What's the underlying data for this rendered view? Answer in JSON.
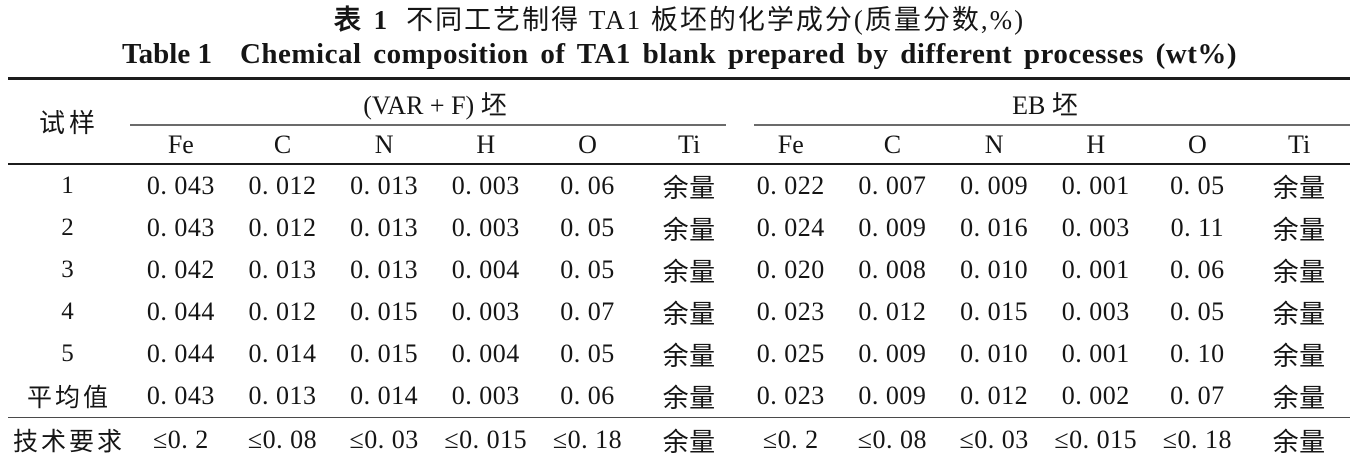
{
  "titles": {
    "cn_label": "表 1",
    "cn_text": "不同工艺制得 TA1 板坯的化学成分(质量分数,%)",
    "en_label": "Table 1",
    "en_text": "Chemical composition of TA1 blank prepared by different processes (wt%)"
  },
  "table": {
    "sample_header": "试样",
    "groups": [
      {
        "label": "(VAR + F) 坯",
        "columns": [
          "Fe",
          "C",
          "N",
          "H",
          "O",
          "Ti"
        ]
      },
      {
        "label": "EB 坯",
        "columns": [
          "Fe",
          "C",
          "N",
          "H",
          "O",
          "Ti"
        ]
      }
    ],
    "rows": [
      {
        "label": "1",
        "values": [
          "0. 043",
          "0. 012",
          "0. 013",
          "0. 003",
          "0. 06",
          "余量",
          "0. 022",
          "0. 007",
          "0. 009",
          "0. 001",
          "0. 05",
          "余量"
        ]
      },
      {
        "label": "2",
        "values": [
          "0. 043",
          "0. 012",
          "0. 013",
          "0. 003",
          "0. 05",
          "余量",
          "0. 024",
          "0. 009",
          "0. 016",
          "0. 003",
          "0. 11",
          "余量"
        ]
      },
      {
        "label": "3",
        "values": [
          "0. 042",
          "0. 013",
          "0. 013",
          "0. 004",
          "0. 05",
          "余量",
          "0. 020",
          "0. 008",
          "0. 010",
          "0. 001",
          "0. 06",
          "余量"
        ]
      },
      {
        "label": "4",
        "values": [
          "0. 044",
          "0. 012",
          "0. 015",
          "0. 003",
          "0. 07",
          "余量",
          "0. 023",
          "0. 012",
          "0. 015",
          "0. 003",
          "0. 05",
          "余量"
        ]
      },
      {
        "label": "5",
        "values": [
          "0. 044",
          "0. 014",
          "0. 015",
          "0. 004",
          "0. 05",
          "余量",
          "0. 025",
          "0. 009",
          "0. 010",
          "0. 001",
          "0. 10",
          "余量"
        ]
      },
      {
        "label": "平均值",
        "values": [
          "0. 043",
          "0. 013",
          "0. 014",
          "0. 003",
          "0. 06",
          "余量",
          "0. 023",
          "0. 009",
          "0. 012",
          "0. 002",
          "0. 07",
          "余量"
        ]
      },
      {
        "label": "技术要求",
        "values": [
          "≤0. 2",
          "≤0. 08",
          "≤0. 03",
          "≤0. 015",
          "≤0. 18",
          "余量",
          "≤0. 2",
          "≤0. 08",
          "≤0. 03",
          "≤0. 015",
          "≤0. 18",
          "余量"
        ],
        "is_requirement": true
      }
    ]
  }
}
